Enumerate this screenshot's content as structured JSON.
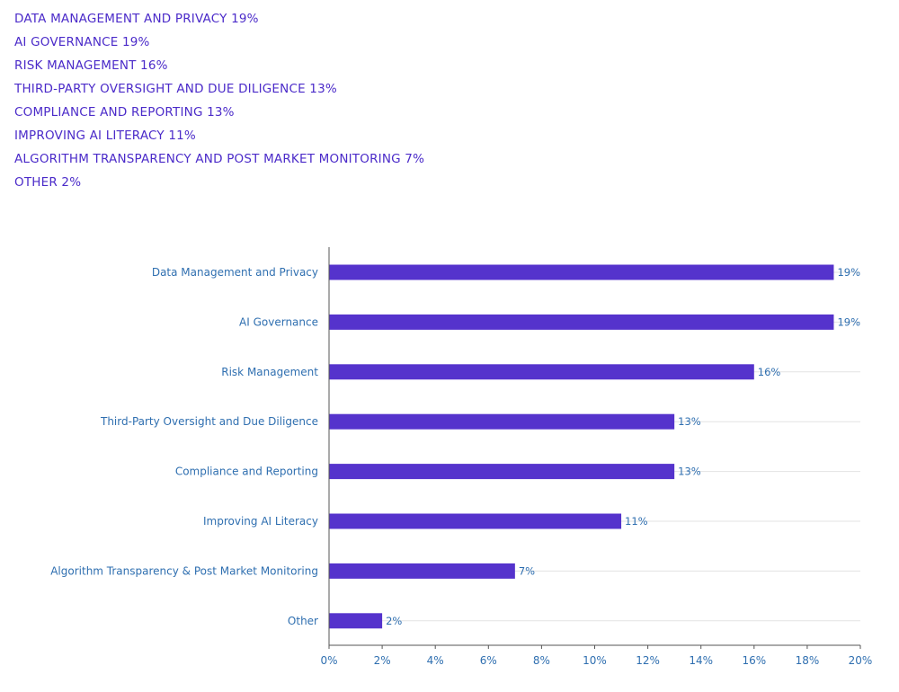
{
  "summary_list": [
    "DATA MANAGEMENT AND PRIVACY 19%",
    "AI GOVERNANCE 19%",
    "RISK MANAGEMENT 16%",
    "THIRD-PARTY OVERSIGHT AND DUE DILIGENCE 13%",
    "COMPLIANCE AND REPORTING 13%",
    "IMPROVING AI LITERACY 11%",
    "ALGORITHM TRANSPARENCY AND POST MARKET MONITORING 7%",
    "OTHER 2%"
  ],
  "colors": {
    "bar": "#5533cc",
    "text_list": "#4b2bc9",
    "axis_text": "#2f6fb0",
    "grid": "#e3e3e3",
    "axis": "#555555"
  },
  "chart_data": {
    "type": "bar",
    "orientation": "horizontal",
    "categories": [
      "Data Management and Privacy",
      "AI Governance",
      "Risk Management",
      "Third-Party Oversight and Due Diligence",
      "Compliance and Reporting",
      "Improving AI Literacy",
      "Algorithm Transparency & Post Market Monitoring",
      "Other"
    ],
    "values": [
      19,
      19,
      16,
      13,
      13,
      11,
      7,
      2
    ],
    "data_labels": [
      "19%",
      "19%",
      "16%",
      "13%",
      "13%",
      "11%",
      "7%",
      "2%"
    ],
    "xlim": [
      0,
      20
    ],
    "x_ticks": [
      0,
      2,
      4,
      6,
      8,
      10,
      12,
      14,
      16,
      18,
      20
    ],
    "x_tick_labels": [
      "0%",
      "2%",
      "4%",
      "6%",
      "8%",
      "10%",
      "12%",
      "14%",
      "16%",
      "18%",
      "20%"
    ],
    "grid": "horizontal lines at category positions",
    "legend": "none"
  }
}
